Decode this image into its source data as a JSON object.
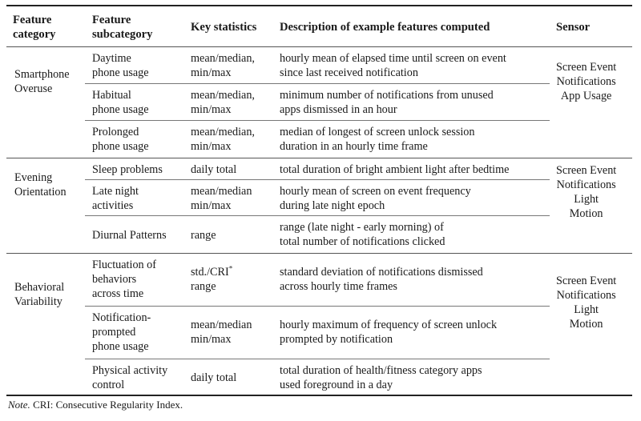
{
  "headers": {
    "category": [
      "Feature",
      "category"
    ],
    "subcategory": [
      "Feature",
      "subcategory"
    ],
    "stats": "Key statistics",
    "description": "Description of example features computed",
    "sensor": "Sensor"
  },
  "groups": [
    {
      "category": [
        "Smartphone",
        "Overuse"
      ],
      "sensors": [
        "Screen Event",
        "Notifications",
        "App Usage"
      ],
      "rows": [
        {
          "sub": [
            "Daytime",
            "phone usage"
          ],
          "stat": [
            "mean/median,",
            "min/max"
          ],
          "desc": [
            "hourly mean of elapsed time until screen on event",
            "since last received notification"
          ]
        },
        {
          "sub": [
            "Habitual",
            "phone usage"
          ],
          "stat": [
            "mean/median,",
            "min/max"
          ],
          "desc": [
            "minimum number of notifications from unused",
            "apps dismissed in an hour"
          ]
        },
        {
          "sub": [
            "Prolonged",
            "phone usage"
          ],
          "stat": [
            "mean/median,",
            "min/max"
          ],
          "desc": [
            "median of longest of screen unlock session",
            "duration in an hourly time frame"
          ]
        }
      ]
    },
    {
      "category": [
        "Evening",
        "Orientation"
      ],
      "sensors": [
        "Screen Event",
        "Notifications",
        "Light",
        "Motion"
      ],
      "rows": [
        {
          "sub": [
            "Sleep problems"
          ],
          "stat": [
            "daily total"
          ],
          "desc": [
            "total duration of bright ambient light after bedtime"
          ]
        },
        {
          "sub": [
            "Late night",
            "activities"
          ],
          "stat": [
            "mean/median",
            "min/max"
          ],
          "desc": [
            "hourly mean of screen on event frequency",
            "during late night epoch"
          ]
        },
        {
          "sub": [
            "Diurnal Patterns"
          ],
          "stat": [
            "range"
          ],
          "desc": [
            "range (late night - early morning) of",
            "total number of notifications clicked"
          ]
        }
      ]
    },
    {
      "category": [
        "Behavioral",
        "Variability"
      ],
      "sensors": [
        "Screen Event",
        "Notifications",
        "Light",
        "Motion"
      ],
      "rows": [
        {
          "sub": [
            "Fluctuation of",
            "behaviors",
            "across time"
          ],
          "stat": [
            "std./CRI",
            "range"
          ],
          "desc": [
            "standard deviation of notifications dismissed",
            "across hourly time frames"
          ]
        },
        {
          "sub": [
            "Notification-",
            "prompted",
            "phone usage"
          ],
          "stat": [
            "mean/median",
            "min/max"
          ],
          "desc": [
            "hourly maximum of frequency of screen unlock",
            "prompted by notification"
          ]
        },
        {
          "sub": [
            "Physical activity",
            "control"
          ],
          "stat": [
            "daily total"
          ],
          "desc": [
            "total duration of health/fitness category apps",
            "used foreground in a day"
          ]
        }
      ]
    }
  ],
  "footnote_mark": "*",
  "note": {
    "label": "Note.",
    "text": " CRI: Consecutive Regularity Index."
  }
}
